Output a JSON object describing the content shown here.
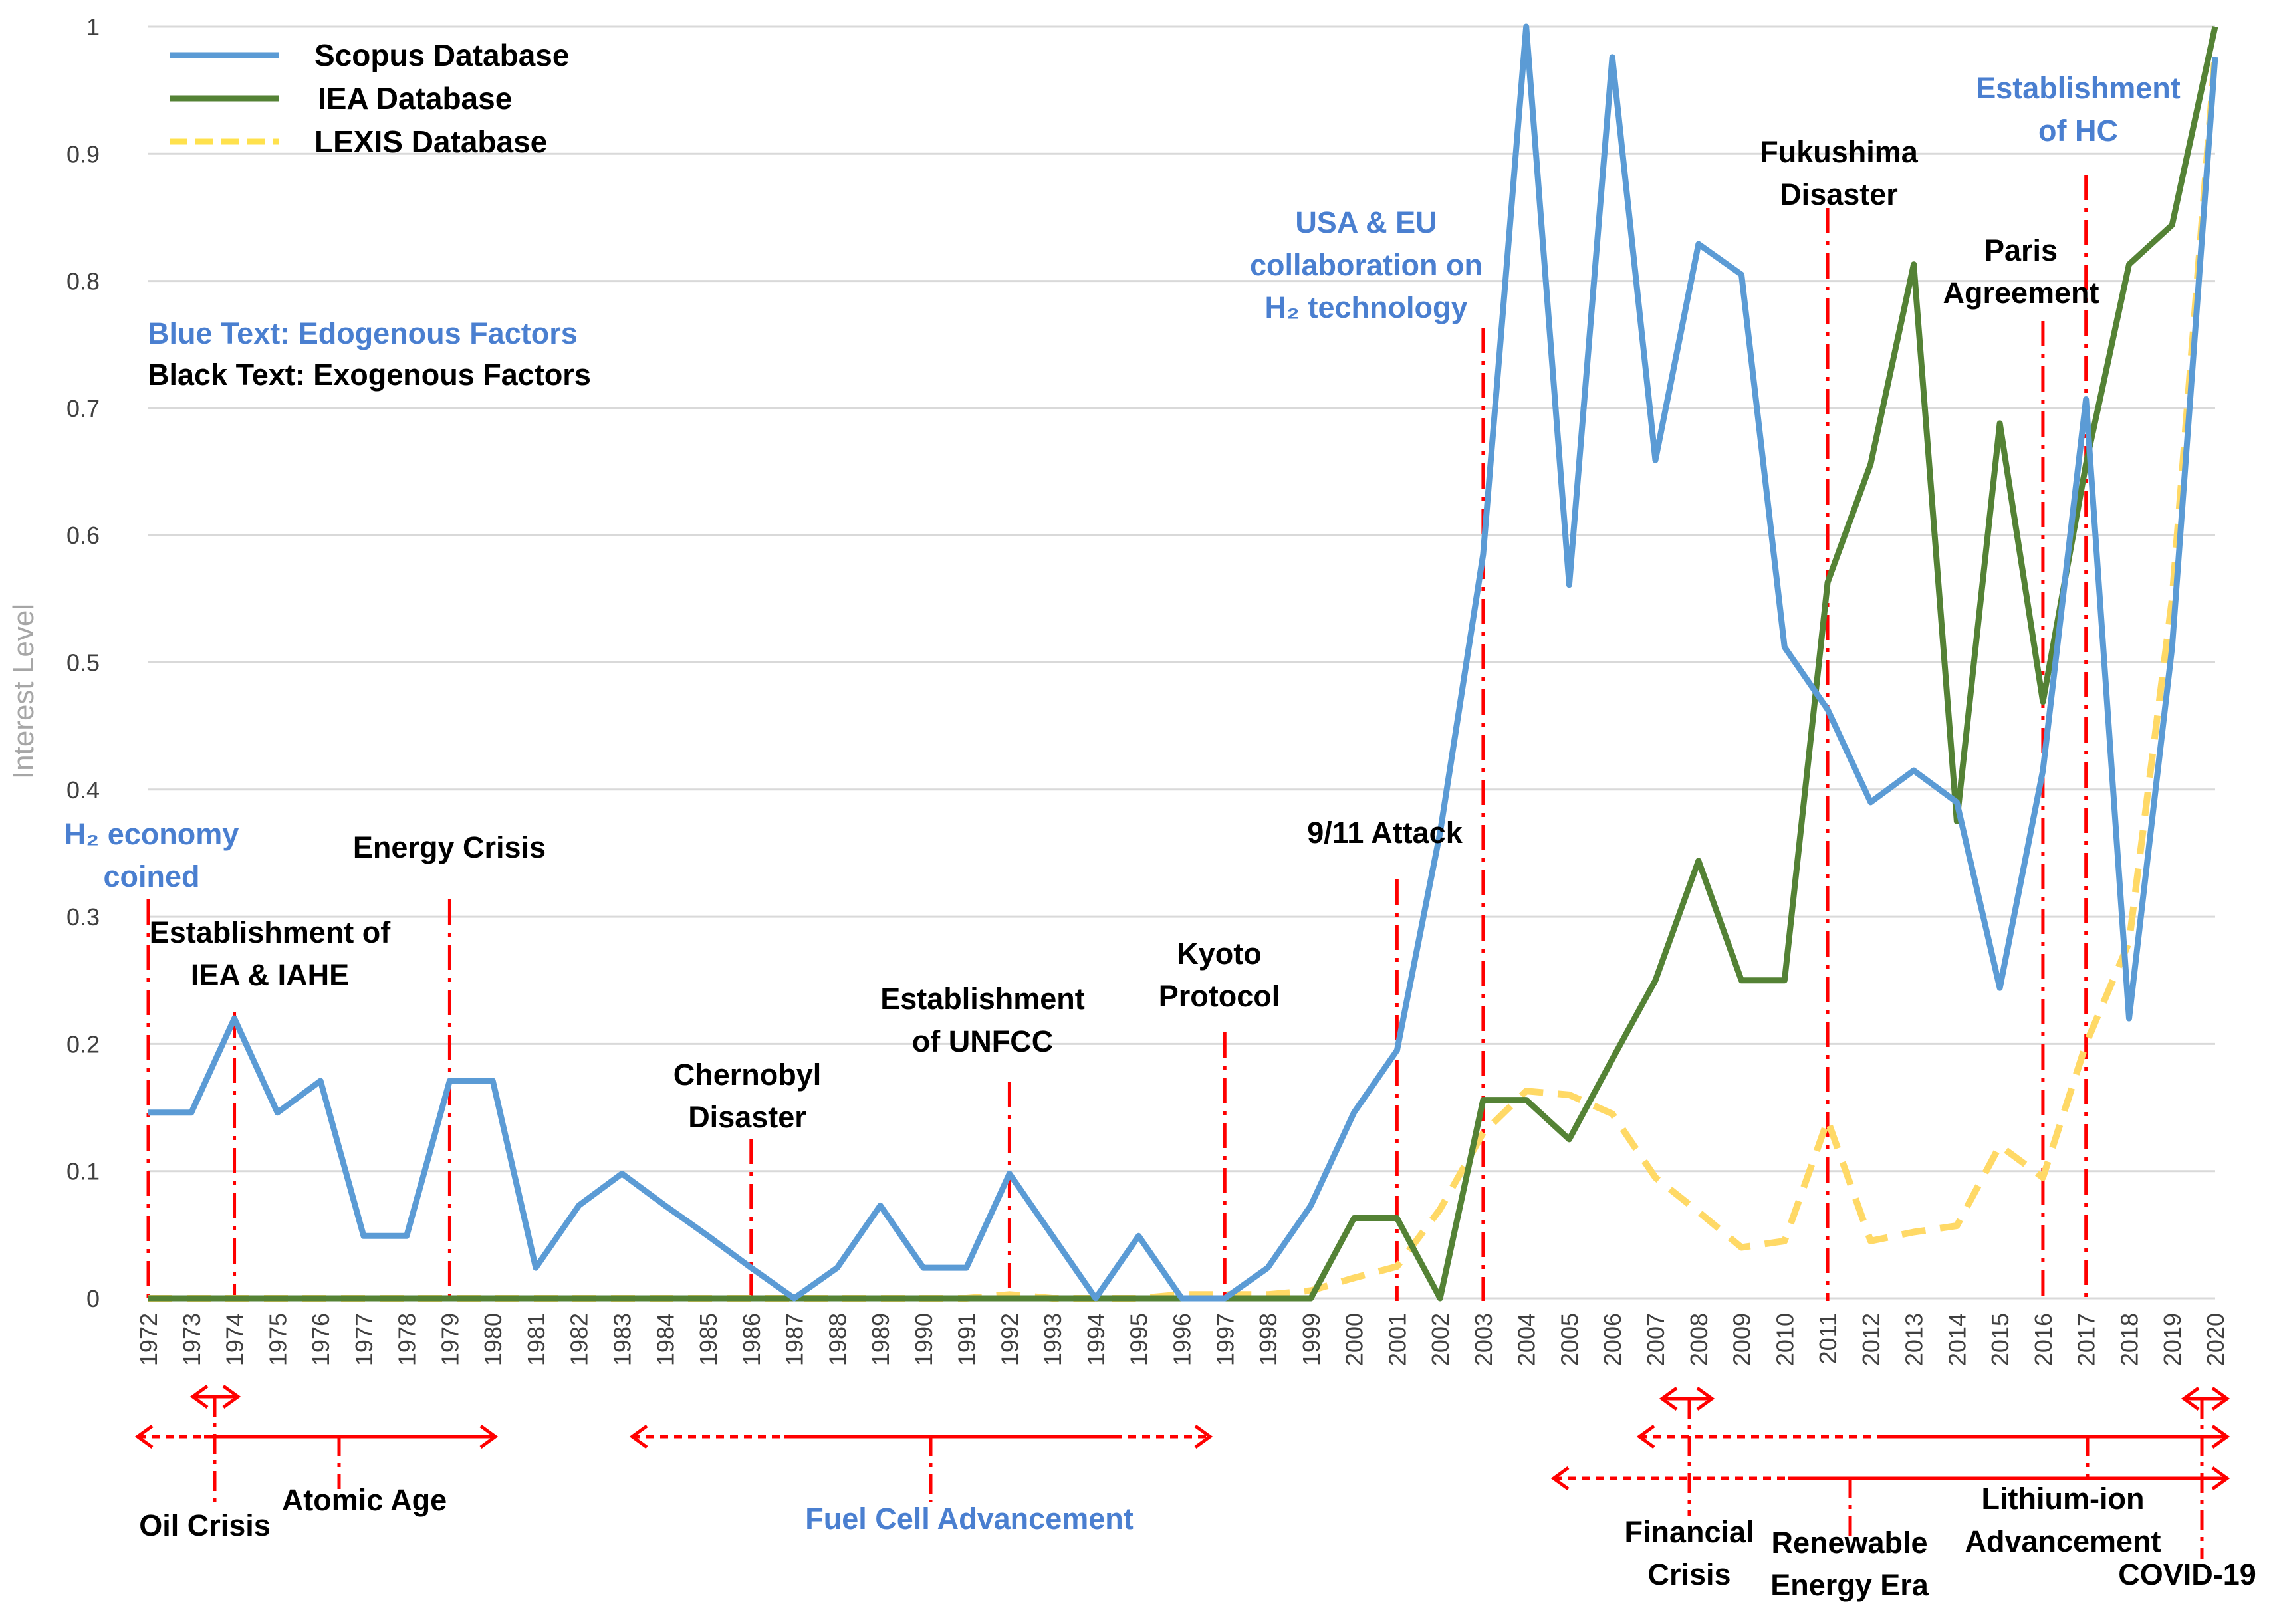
{
  "colors": {
    "scopus": "#5b9bd5",
    "iea": "#548235",
    "lexis": "#ffd966",
    "event_line": "#ff0000",
    "grid": "#d9d9d9",
    "endogenous_text": "#4a7fd0",
    "exogenous_text": "#000000"
  },
  "chart_data": {
    "type": "line",
    "title": "",
    "xlabel": "",
    "ylabel": "Interest Level",
    "ylim": [
      0,
      1
    ],
    "yticks": [
      "0",
      "0.1",
      "0.2",
      "0.3",
      "0.4",
      "0.5",
      "0.6",
      "0.7",
      "0.8",
      "0.9",
      "1"
    ],
    "grid": true,
    "legend_position": "top-left",
    "x": [
      "1972",
      "1973",
      "1974",
      "1975",
      "1976",
      "1977",
      "1978",
      "1979",
      "1980",
      "1981",
      "1982",
      "1983",
      "1984",
      "1985",
      "1986",
      "1987",
      "1988",
      "1989",
      "1990",
      "1991",
      "1992",
      "1993",
      "1994",
      "1995",
      "1996",
      "1997",
      "1998",
      "1999",
      "2000",
      "2001",
      "2002",
      "2003",
      "2004",
      "2005",
      "2006",
      "2007",
      "2008",
      "2009",
      "2010",
      "2011",
      "2012",
      "2013",
      "2014",
      "2015",
      "2016",
      "2017",
      "2018",
      "2019",
      "2020"
    ],
    "series": [
      {
        "name": "Scopus Database",
        "style": "solid",
        "values": [
          0.146,
          0.146,
          0.22,
          0.146,
          0.171,
          0.049,
          0.049,
          0.171,
          0.171,
          0.024,
          0.073,
          0.098,
          0.073,
          0.049,
          0.024,
          0.0,
          0.024,
          0.073,
          0.024,
          0.024,
          0.098,
          0.049,
          0.0,
          0.049,
          0.0,
          0.0,
          0.024,
          0.073,
          0.146,
          0.195,
          0.366,
          0.585,
          1.0,
          0.561,
          0.976,
          0.659,
          0.829,
          0.805,
          0.512,
          0.463,
          0.39,
          0.415,
          0.39,
          0.244,
          0.415,
          0.707,
          0.22,
          0.512,
          0.976
        ]
      },
      {
        "name": "IEA Database",
        "style": "solid",
        "values": [
          0,
          0,
          0,
          0,
          0,
          0,
          0,
          0,
          0,
          0,
          0,
          0,
          0,
          0,
          0,
          0,
          0,
          0,
          0,
          0,
          0,
          0,
          0,
          0,
          0,
          0,
          0,
          0,
          0.063,
          0.063,
          0.0,
          0.156,
          0.156,
          0.125,
          0.188,
          0.25,
          0.344,
          0.25,
          0.25,
          0.563,
          0.656,
          0.813,
          0.375,
          0.688,
          0.469,
          0.656,
          0.813,
          0.844,
          1.0
        ]
      },
      {
        "name": "LEXIS Database",
        "style": "dashed",
        "values": [
          0,
          0,
          0,
          0,
          0,
          0,
          0,
          0,
          0,
          0,
          0,
          0,
          0,
          0,
          0,
          0,
          0,
          0,
          0,
          0,
          0.003,
          0,
          0,
          0,
          0.003,
          0.003,
          0.003,
          0.006,
          0.016,
          0.025,
          0.07,
          0.13,
          0.163,
          0.16,
          0.145,
          0.095,
          0.068,
          0.04,
          0.045,
          0.14,
          0.045,
          0.052,
          0.057,
          0.12,
          0.095,
          0.2,
          0.28,
          0.55,
          0.98
        ]
      }
    ],
    "legend": [
      "Scopus Database",
      "IEA Database",
      "LEXIS Database"
    ],
    "key": {
      "endogenous": "Blue Text: Edogenous Factors",
      "exogenous": "Black Text: Exogenous Factors"
    },
    "events": [
      {
        "id": "h2-economy",
        "year": 1972,
        "lines": [
          "H₂ economy",
          "coined"
        ],
        "kind": "endogenous"
      },
      {
        "id": "iea-iahe",
        "year": 1974,
        "lines": [
          "Establishment of",
          "IEA & IAHE"
        ],
        "kind": "exogenous"
      },
      {
        "id": "energy-crisis",
        "year": 1979,
        "lines": [
          "Energy Crisis"
        ],
        "kind": "exogenous"
      },
      {
        "id": "chernobyl",
        "year": 1986,
        "lines": [
          "Chernobyl",
          "Disaster"
        ],
        "kind": "exogenous"
      },
      {
        "id": "unfcc",
        "year": 1992,
        "lines": [
          "Establishment",
          "of UNFCC"
        ],
        "kind": "exogenous"
      },
      {
        "id": "kyoto",
        "year": 1997,
        "lines": [
          "Kyoto",
          "Protocol"
        ],
        "kind": "exogenous"
      },
      {
        "id": "911",
        "year": 2001,
        "lines": [
          "9/11 Attack"
        ],
        "kind": "exogenous"
      },
      {
        "id": "usa-eu",
        "year": 2003,
        "lines": [
          "USA & EU",
          "collaboration on",
          "H₂ technology"
        ],
        "kind": "endogenous"
      },
      {
        "id": "fukushima",
        "year": 2011,
        "lines": [
          "Fukushima",
          "Disaster"
        ],
        "kind": "exogenous"
      },
      {
        "id": "paris",
        "year": 2016,
        "lines": [
          "Paris",
          "Agreement"
        ],
        "kind": "exogenous"
      },
      {
        "id": "hc",
        "year": 2017,
        "lines": [
          "Establishment",
          "of HC"
        ],
        "kind": "endogenous"
      }
    ],
    "periods": [
      {
        "id": "oil-crisis",
        "start": 1973,
        "end": 1974,
        "lines": [
          "Oil Crisis"
        ],
        "kind": "exogenous"
      },
      {
        "id": "atomic-age",
        "start": 1972,
        "end": 1980,
        "lines": [
          "Atomic Age"
        ],
        "kind": "exogenous"
      },
      {
        "id": "fuel-cell",
        "start": 1983,
        "end": 1997,
        "lines": [
          "Fuel Cell Advancement"
        ],
        "kind": "endogenous"
      },
      {
        "id": "financial-crisis",
        "start": 2007,
        "end": 2008,
        "lines": [
          "Financial",
          "Crisis"
        ],
        "kind": "exogenous"
      },
      {
        "id": "lithium-ion",
        "start": 2006,
        "end": 2020,
        "lines": [
          "Lithium-ion",
          "Advancement"
        ],
        "kind": "exogenous"
      },
      {
        "id": "renewable",
        "start": 2004,
        "end": 2020,
        "lines": [
          "Renewable",
          "Energy Era"
        ],
        "kind": "exogenous"
      },
      {
        "id": "covid",
        "start": 2019,
        "end": 2020,
        "lines": [
          "COVID-19"
        ],
        "kind": "exogenous"
      }
    ]
  }
}
